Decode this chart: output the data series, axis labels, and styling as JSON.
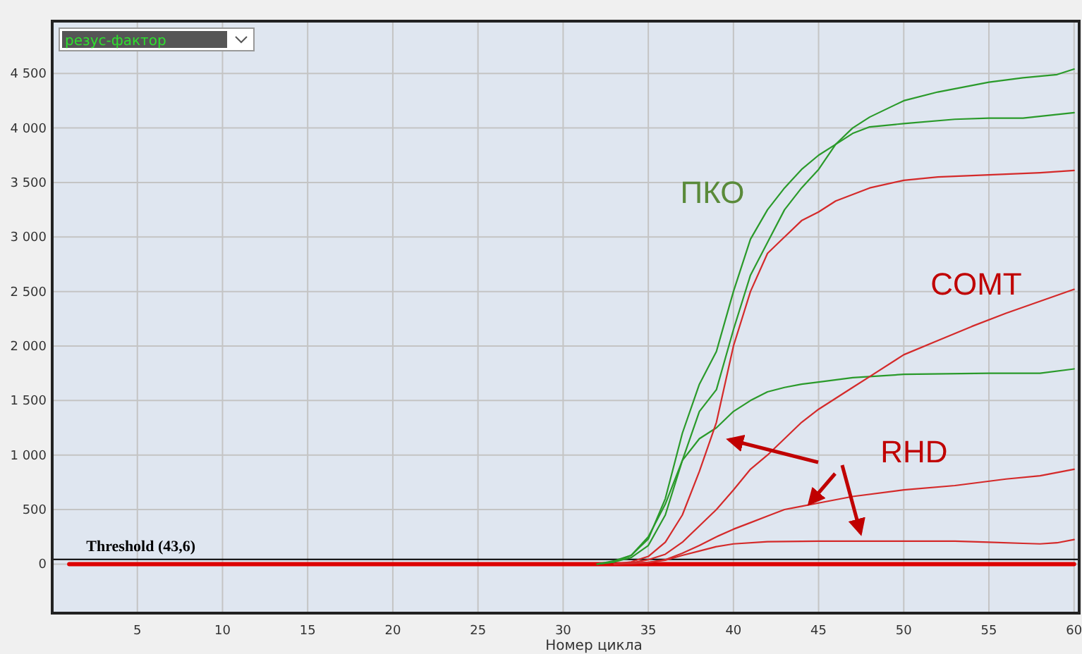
{
  "chart_data": {
    "type": "line",
    "subtitle": "резус-фактор",
    "xlabel": "Номер цикла",
    "xlim": [
      0,
      60.3
    ],
    "ylim": [
      -450,
      4980
    ],
    "xticks": [
      5,
      10,
      15,
      20,
      25,
      30,
      35,
      40,
      45,
      50,
      55,
      60
    ],
    "yticks": [
      {
        "value": 0,
        "label": "0"
      },
      {
        "value": 500,
        "label": "500"
      },
      {
        "value": 1000,
        "label": "1 000"
      },
      {
        "value": 1500,
        "label": "1 500"
      },
      {
        "value": 2000,
        "label": "2 000"
      },
      {
        "value": 2500,
        "label": "2 500"
      },
      {
        "value": 3000,
        "label": "3 000"
      },
      {
        "value": 3500,
        "label": "3 500"
      },
      {
        "value": 4000,
        "label": "4 000"
      },
      {
        "value": 4500,
        "label": "4 500"
      }
    ],
    "grid": true,
    "marker": "none",
    "line_style": "solid",
    "ref_lines": [
      {
        "axis": "y",
        "value": 43.6,
        "label": "Threshold (43,6)",
        "color": "#000000"
      }
    ],
    "annotations": [
      "ПКО",
      "COMT",
      "RHD"
    ],
    "series": [
      {
        "color": "#dd0000",
        "x": [
          1,
          60
        ],
        "values": [
          0,
          0
        ]
      },
      {
        "color": "#2a9a2a",
        "x": [
          32,
          33,
          34,
          35,
          36,
          37,
          38,
          39,
          40,
          41,
          42,
          43,
          44,
          45,
          46,
          47,
          48,
          50,
          53,
          55,
          57,
          60
        ],
        "values": [
          0,
          30,
          80,
          230,
          600,
          1200,
          1650,
          1950,
          2500,
          2980,
          3250,
          3450,
          3620,
          3750,
          3850,
          3950,
          4010,
          4040,
          4080,
          4090,
          4090,
          4140
        ]
      },
      {
        "color": "#2a9a2a",
        "x": [
          32,
          33,
          34,
          35,
          36,
          37,
          38,
          39,
          40,
          41,
          42,
          43,
          44,
          45,
          46,
          47,
          48,
          50,
          52,
          55,
          57,
          59,
          60
        ],
        "values": [
          0,
          20,
          60,
          170,
          450,
          950,
          1400,
          1600,
          2150,
          2650,
          2950,
          3250,
          3450,
          3620,
          3850,
          4000,
          4100,
          4250,
          4330,
          4420,
          4460,
          4490,
          4540
        ]
      },
      {
        "color": "#2a9a2a",
        "x": [
          32,
          33,
          34,
          35,
          36,
          37,
          38,
          39,
          40,
          41,
          42,
          43,
          44,
          45,
          47,
          50,
          55,
          58,
          60
        ],
        "values": [
          0,
          20,
          80,
          250,
          550,
          950,
          1150,
          1250,
          1400,
          1500,
          1580,
          1620,
          1650,
          1670,
          1710,
          1740,
          1750,
          1750,
          1790
        ]
      },
      {
        "color": "#d42a2a",
        "x": [
          33,
          34,
          35,
          36,
          37,
          38,
          39,
          40,
          41,
          42,
          43,
          44,
          45,
          46,
          48,
          50,
          52,
          55,
          58,
          60
        ],
        "values": [
          0,
          20,
          70,
          200,
          450,
          850,
          1300,
          2000,
          2500,
          2850,
          3000,
          3150,
          3230,
          3330,
          3450,
          3520,
          3550,
          3570,
          3590,
          3610
        ]
      },
      {
        "color": "#d42a2a",
        "x": [
          33,
          34,
          35,
          36,
          37,
          38,
          39,
          40,
          41,
          42,
          43,
          44,
          45,
          46,
          47,
          48,
          50,
          52,
          54,
          56,
          58,
          60
        ],
        "values": [
          0,
          10,
          40,
          90,
          200,
          350,
          500,
          680,
          870,
          1000,
          1150,
          1300,
          1420,
          1520,
          1620,
          1720,
          1920,
          2050,
          2180,
          2300,
          2410,
          2520
        ]
      },
      {
        "color": "#d42a2a",
        "x": [
          33,
          34,
          35,
          36,
          37,
          38,
          39,
          40,
          41,
          42,
          43,
          44,
          45,
          47,
          50,
          53,
          56,
          58,
          60
        ],
        "values": [
          0,
          5,
          15,
          40,
          100,
          170,
          250,
          320,
          380,
          440,
          500,
          530,
          560,
          620,
          680,
          720,
          780,
          810,
          870
        ]
      },
      {
        "color": "#d42a2a",
        "x": [
          33,
          34,
          35,
          36,
          37,
          38,
          39,
          40,
          42,
          45,
          50,
          53,
          55,
          57,
          58,
          59,
          60
        ],
        "values": [
          0,
          5,
          15,
          35,
          80,
          120,
          160,
          185,
          205,
          210,
          210,
          210,
          200,
          190,
          185,
          195,
          225
        ]
      }
    ]
  }
}
